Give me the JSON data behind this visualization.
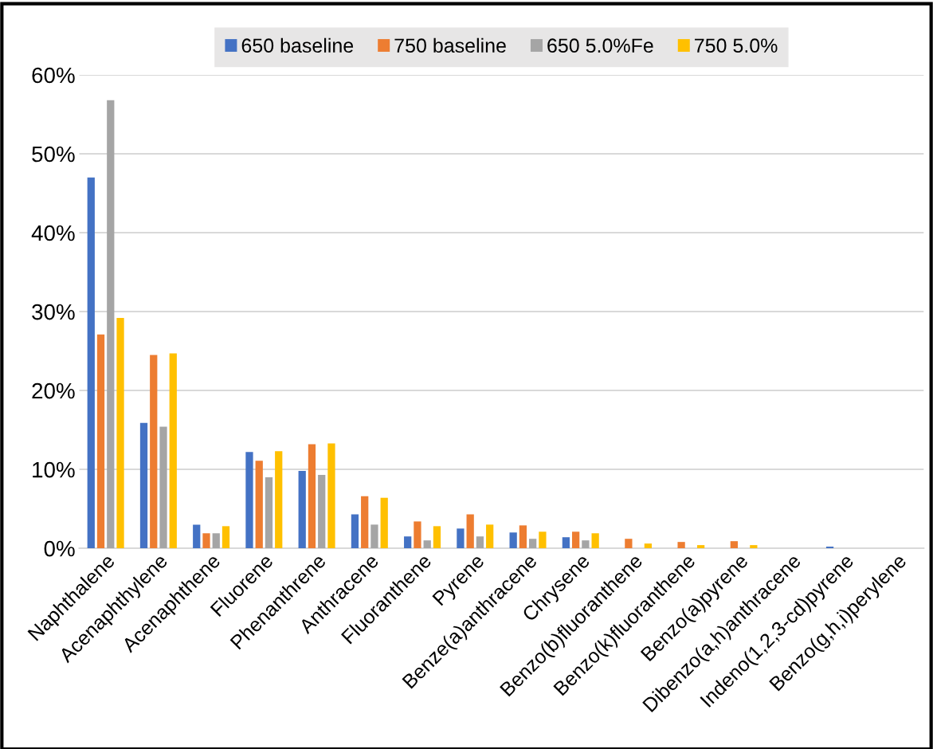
{
  "chart_data": {
    "type": "bar",
    "categories": [
      "Naphthalene",
      "Acenaphthylene",
      "Acenaphthene",
      "Fluorene",
      "Phenanthrene",
      "Anthracene",
      "Fluoranthene",
      "Pyrene",
      "Benze(a)anthracene",
      "Chrysene",
      "Benzo(b)fluoranthene",
      "Benzo(k)fluoranthene",
      "Benzo(a)pyrene",
      "Dibenzo(a,h)anthracene",
      "Indeno(1,2,3-cd)pyrene",
      "Benzo(g,h,i)perylene"
    ],
    "series": [
      {
        "name": "650 baseline",
        "color": "#4472c4",
        "values": [
          47.0,
          15.9,
          3.0,
          12.2,
          9.8,
          4.3,
          1.5,
          2.5,
          2.0,
          1.4,
          0,
          0,
          0,
          0,
          0.2,
          0
        ]
      },
      {
        "name": "750 baseline",
        "color": "#ed7d31",
        "values": [
          27.1,
          24.5,
          1.9,
          11.1,
          13.2,
          6.6,
          3.4,
          4.3,
          2.9,
          2.1,
          1.2,
          0.8,
          0.9,
          0,
          0,
          0
        ]
      },
      {
        "name": "650 5.0%Fe",
        "color": "#a5a5a5",
        "values": [
          56.8,
          15.4,
          1.9,
          9.0,
          9.3,
          3.0,
          1.0,
          1.5,
          1.2,
          1.0,
          0,
          0,
          0,
          0,
          0,
          0
        ]
      },
      {
        "name": "750 5.0%",
        "color": "#ffc000",
        "values": [
          29.2,
          24.7,
          2.8,
          12.3,
          13.3,
          6.4,
          2.8,
          3.0,
          2.1,
          1.9,
          0.6,
          0.4,
          0.4,
          0,
          0,
          0
        ]
      }
    ],
    "ylim": [
      0,
      60
    ],
    "yticks": [
      {
        "value": 0,
        "label": "0%"
      },
      {
        "value": 10,
        "label": "10%"
      },
      {
        "value": 20,
        "label": "20%"
      },
      {
        "value": 30,
        "label": "30%"
      },
      {
        "value": 40,
        "label": "40%"
      },
      {
        "value": 50,
        "label": "50%"
      },
      {
        "value": 60,
        "label": "60%"
      }
    ],
    "grid": "y",
    "legend": "top"
  }
}
